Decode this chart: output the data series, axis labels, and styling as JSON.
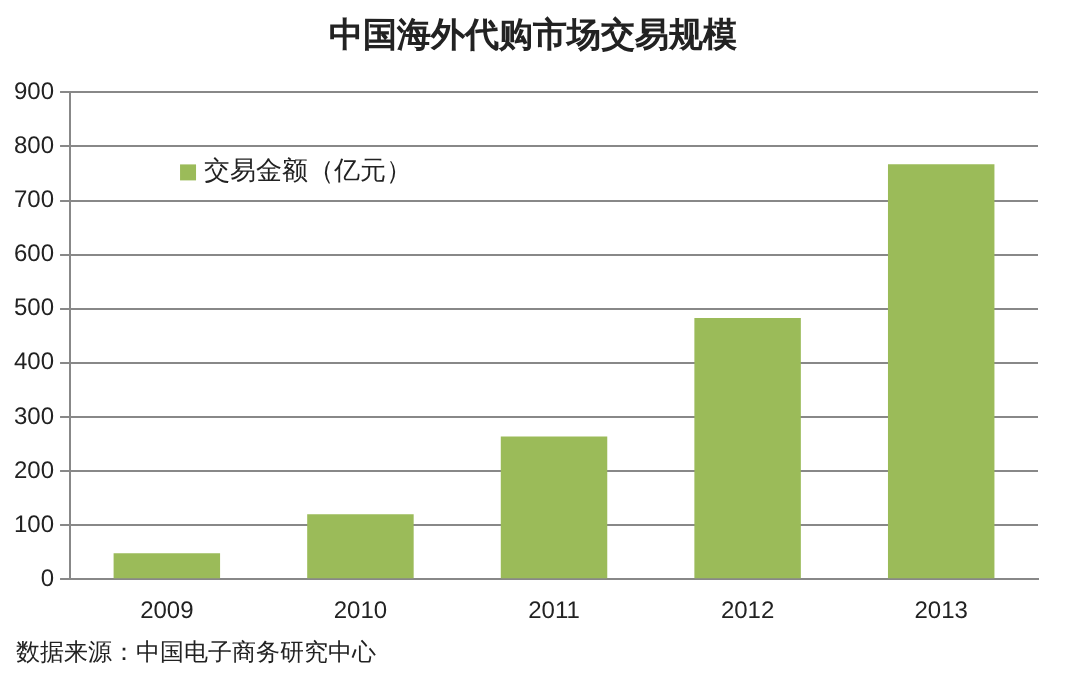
{
  "chart_data": {
    "type": "bar",
    "title": "中国海外代购市场交易规模",
    "categories": [
      "2009",
      "2010",
      "2011",
      "2012",
      "2013"
    ],
    "series": [
      {
        "name": "交易金额（亿元）",
        "color": "#9bbb59",
        "values": [
          48,
          120,
          264,
          483,
          767
        ]
      }
    ],
    "ylim": [
      0,
      900
    ],
    "yticks": [
      0,
      100,
      200,
      300,
      400,
      500,
      600,
      700,
      800,
      900
    ],
    "grid": "y",
    "legend": "top left",
    "annotations": [
      "数据来源：中国电子商务研究中心"
    ]
  }
}
